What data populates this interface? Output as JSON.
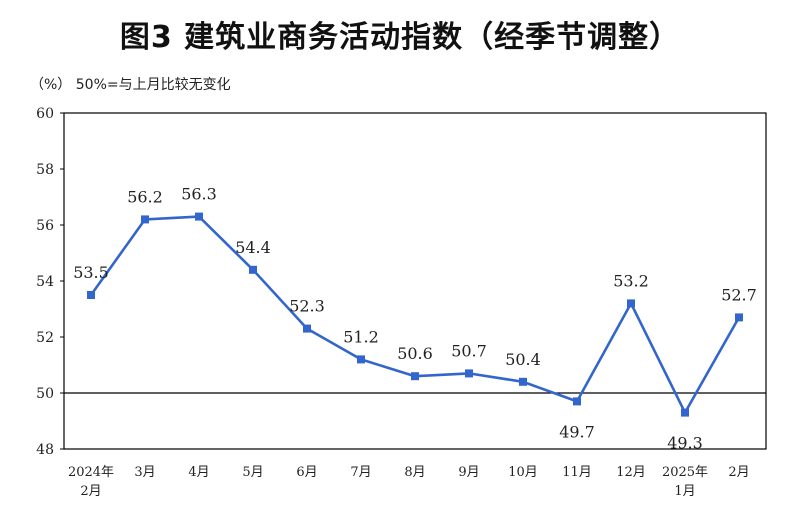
{
  "title": "图3  建筑业商务活动指数（经季节调整）",
  "unit_note": "（%）  50%=与上月比较无变化",
  "colors": {
    "line": "#3366cc",
    "axis": "#000000",
    "text": "#222222"
  },
  "chart_data": {
    "type": "line",
    "title": "图3  建筑业商务活动指数（经季节调整）",
    "ylabel": "（%）",
    "reference_line": 50,
    "ylim": [
      48,
      60
    ],
    "yticks": [
      48,
      50,
      52,
      54,
      56,
      58,
      60
    ],
    "categories": [
      [
        "2024年",
        "2月"
      ],
      [
        "3月"
      ],
      [
        "4月"
      ],
      [
        "5月"
      ],
      [
        "6月"
      ],
      [
        "7月"
      ],
      [
        "8月"
      ],
      [
        "9月"
      ],
      [
        "10月"
      ],
      [
        "11月"
      ],
      [
        "12月"
      ],
      [
        "2025年",
        "1月"
      ],
      [
        "2月"
      ]
    ],
    "series": [
      {
        "name": "建筑业商务活动指数",
        "values": [
          53.5,
          56.2,
          56.3,
          54.4,
          52.3,
          51.2,
          50.6,
          50.7,
          50.4,
          49.7,
          53.2,
          49.3,
          52.7
        ],
        "labels": [
          "53.5",
          "56.2",
          "56.3",
          "54.4",
          "52.3",
          "51.2",
          "50.6",
          "50.7",
          "50.4",
          "49.7",
          "53.2",
          "49.3",
          "52.7"
        ],
        "label_positions": [
          "above",
          "above",
          "above",
          "above",
          "above",
          "above",
          "above",
          "above",
          "above",
          "below",
          "above",
          "below",
          "above"
        ]
      }
    ]
  }
}
